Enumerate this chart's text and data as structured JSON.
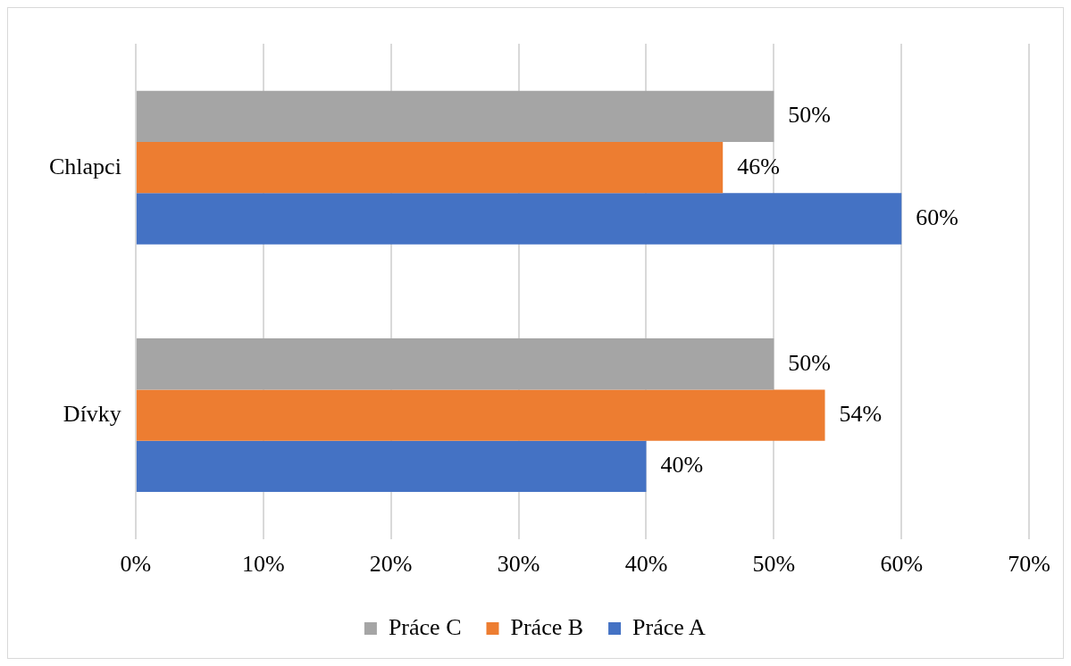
{
  "chart_data": {
    "type": "bar",
    "orientation": "horizontal",
    "categories": [
      "Chlapci",
      "Dívky"
    ],
    "series": [
      {
        "name": "Práce C",
        "color": "#a5a5a5",
        "values": [
          50,
          50
        ],
        "value_labels": [
          "50%",
          "50%"
        ]
      },
      {
        "name": "Práce B",
        "color": "#ed7d31",
        "values": [
          46,
          54
        ],
        "value_labels": [
          "46%",
          "54%"
        ]
      },
      {
        "name": "Práce A",
        "color": "#4472c4",
        "values": [
          60,
          40
        ],
        "value_labels": [
          "60%",
          "40%"
        ]
      }
    ],
    "xlim": [
      0,
      70
    ],
    "xticks": [
      {
        "value": 0,
        "label": "0%"
      },
      {
        "value": 10,
        "label": "10%"
      },
      {
        "value": 20,
        "label": "20%"
      },
      {
        "value": 30,
        "label": "30%"
      },
      {
        "value": 40,
        "label": "40%"
      },
      {
        "value": 50,
        "label": "50%"
      },
      {
        "value": 60,
        "label": "60%"
      },
      {
        "value": 70,
        "label": "70%"
      }
    ],
    "grid": "x",
    "legend": "bottom"
  }
}
